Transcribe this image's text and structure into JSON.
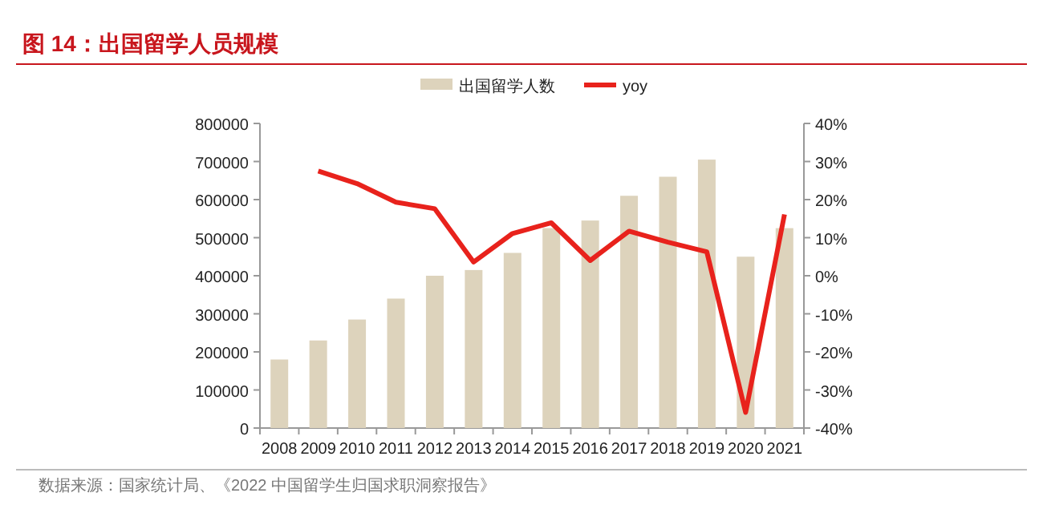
{
  "chart_data": {
    "type": "bar",
    "title": "图 14：出国留学人员规模",
    "categories": [
      "2008",
      "2009",
      "2010",
      "2011",
      "2012",
      "2013",
      "2014",
      "2015",
      "2016",
      "2017",
      "2018",
      "2019",
      "2020",
      "2021"
    ],
    "series": [
      {
        "name": "出国留学人数",
        "color": "#ddd3bc",
        "values": [
          180000,
          230000,
          285000,
          340000,
          400000,
          415000,
          460000,
          525000,
          545000,
          610000,
          660000,
          705000,
          450000,
          525000
        ]
      },
      {
        "name": "yoy",
        "type": "line",
        "axis": "y2",
        "color": "#e8221c",
        "values": [
          null,
          27.5,
          24.2,
          19.3,
          17.6,
          3.6,
          11.1,
          13.9,
          4.0,
          11.7,
          8.8,
          6.3,
          -35.9,
          16.1
        ]
      }
    ],
    "ylim": [
      0,
      800000
    ],
    "yticks": [
      0,
      100000,
      200000,
      300000,
      400000,
      500000,
      600000,
      700000,
      800000
    ],
    "y2lim": [
      -40,
      40
    ],
    "y2ticks": [
      {
        "value": -40,
        "label": "-40%"
      },
      {
        "value": -30,
        "label": "-30%"
      },
      {
        "value": -20,
        "label": "-20%"
      },
      {
        "value": -10,
        "label": "-10%"
      },
      {
        "value": 0,
        "label": "0%"
      },
      {
        "value": 10,
        "label": "10%"
      },
      {
        "value": 20,
        "label": "20%"
      },
      {
        "value": 30,
        "label": "30%"
      },
      {
        "value": 40,
        "label": "40%"
      }
    ],
    "legend": "top",
    "grid": false,
    "annotations": [
      "数据来源：国家统计局、《2022 中国留学生归国求职洞察报告》"
    ]
  }
}
